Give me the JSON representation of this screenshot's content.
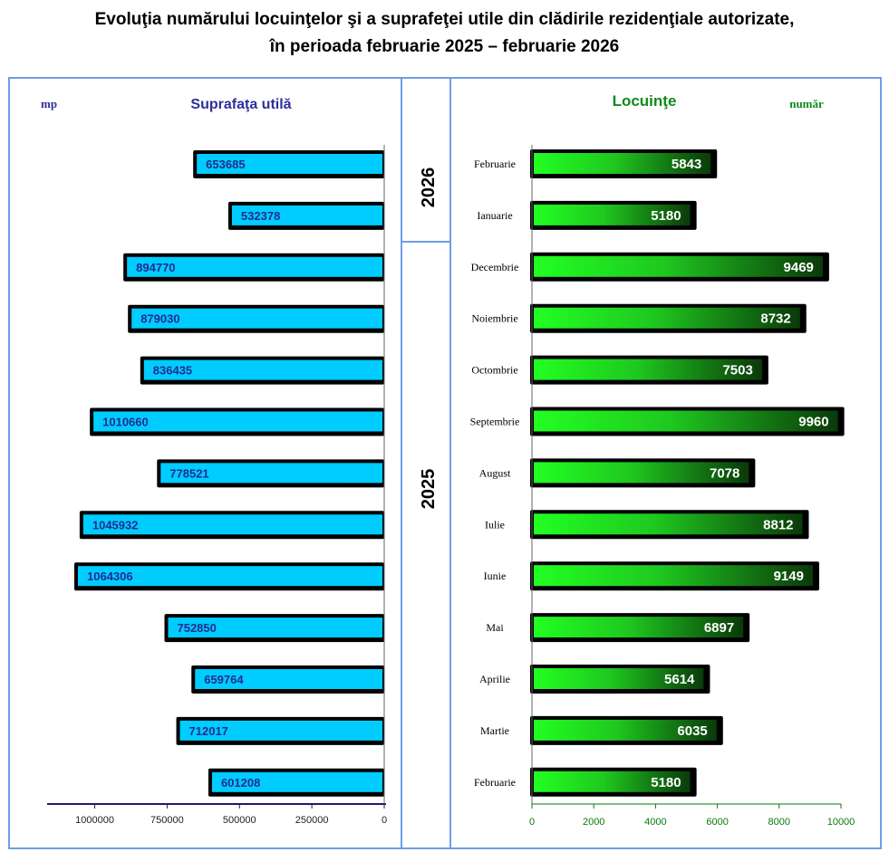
{
  "title": {
    "line1": "Evoluţia numărului locuinţelor şi a suprafeţei utile din clădirile rezidenţiale autorizate,",
    "line2": "în perioada februarie 2025 – februarie 2026"
  },
  "years": [
    "2026",
    "2025"
  ],
  "colors": {
    "frame": "#6f9ee6",
    "left_bar": "#00ccff",
    "left_label": "#1f2c8f",
    "left_title": "#2e2e9a",
    "right_title": "#0f8a1a",
    "right_bar_light": "#22ff22",
    "right_bar_dark": "#0a3a0a",
    "right_axis": "#0a7a0a",
    "left_axis": "#1a1a6e"
  },
  "chart_data": [
    {
      "type": "bar",
      "orientation": "horizontal",
      "direction": "right-to-left",
      "title": "Suprafaţa utilă",
      "unit": "mp",
      "categories": [
        "Februarie 2026",
        "Ianuarie 2026",
        "Decembrie 2025",
        "Noiembrie 2025",
        "Octombrie 2025",
        "Septembrie 2025",
        "August 2025",
        "Iulie 2025",
        "Iunie 2025",
        "Mai 2025",
        "Aprilie 2025",
        "Martie 2025",
        "Februarie 2025"
      ],
      "values": [
        653685,
        532378,
        894770,
        879030,
        836435,
        1010660,
        778521,
        1045932,
        1064306,
        752850,
        659764,
        712017,
        601208
      ],
      "xlim": [
        0,
        1150000
      ],
      "ticks": [
        1000000,
        750000,
        500000,
        250000,
        0
      ],
      "tick_labels": [
        "1000000",
        "750000",
        "500000",
        "250000",
        "0"
      ]
    },
    {
      "type": "bar",
      "orientation": "horizontal",
      "title": "Locuinţe",
      "unit": "număr",
      "categories": [
        "Februarie",
        "Ianuarie",
        "Decembrie",
        "Noiembrie",
        "Octombrie",
        "Septembrie",
        "August",
        "Iulie",
        "Iunie",
        "Mai",
        "Aprilie",
        "Martie",
        "Februarie"
      ],
      "values": [
        5843,
        5180,
        9469,
        8732,
        7503,
        9960,
        7078,
        8812,
        9149,
        6897,
        5614,
        6035,
        5180
      ],
      "xlim": [
        0,
        10000
      ],
      "ticks": [
        0,
        2000,
        4000,
        6000,
        8000,
        10000
      ],
      "tick_labels": [
        "0",
        "2000",
        "4000",
        "6000",
        "8000",
        "10000"
      ]
    }
  ]
}
